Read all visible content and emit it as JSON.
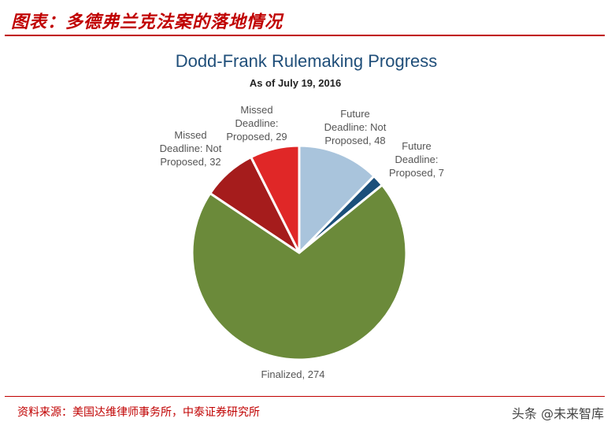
{
  "header": {
    "title": "图表：多德弗兰克法案的落地情况"
  },
  "footer": {
    "source": "资料来源：美国达维律师事务所，中泰证券研究所",
    "watermark": "头条 @未来智库"
  },
  "chart_data": {
    "type": "pie",
    "title": "Dodd-Frank Rulemaking Progress",
    "subtitle": "As of July 19, 2016",
    "slices": [
      {
        "label_lines": [
          "Future",
          "Deadline: Not",
          "Proposed, 48"
        ],
        "value": 48,
        "color": "#a9c4dc"
      },
      {
        "label_lines": [
          "Future",
          "Deadline:",
          "Proposed, 7"
        ],
        "value": 7,
        "color": "#1b4f7a"
      },
      {
        "label_lines": [
          "Finalized, 274"
        ],
        "value": 274,
        "color": "#6b8a3a"
      },
      {
        "label_lines": [
          "Missed",
          "Deadline: Not",
          "Proposed, 32"
        ],
        "value": 32,
        "color": "#a51c1c"
      },
      {
        "label_lines": [
          "Missed",
          "Deadline:",
          "Proposed, 29"
        ],
        "value": 29,
        "color": "#e02727"
      }
    ]
  }
}
